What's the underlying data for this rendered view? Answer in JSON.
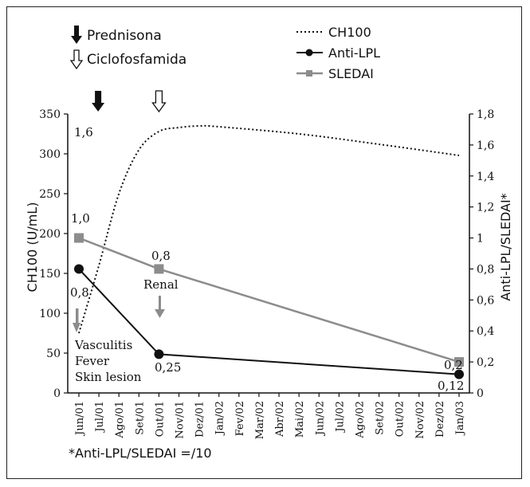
{
  "legend": {
    "prednisona": "Prednisona",
    "ciclofosfamida": "Ciclofosfamida",
    "ch100": "CH100",
    "anti_lpl": "Anti-LPL",
    "sledai": "SLEDAI"
  },
  "footnote": "*Anti-LPL/SLEDAI =/10",
  "annotations": {
    "renal": "Renal",
    "symptoms": [
      "Vasculitis",
      "Fever",
      "Skin lesion"
    ],
    "label_1_6": "1,6",
    "label_1_0": "1,0",
    "label_0_8_sledai": "0,8",
    "label_0_8_lpl": "0,8",
    "label_0_25": "0,25",
    "label_0_2": "0,2",
    "label_0_12": "0,12"
  },
  "colors": {
    "ch100": "#111111",
    "anti_lpl": "#111111",
    "sledai": "#8c8c8c",
    "arrow_gray": "#8c8c8c"
  },
  "chart_data": {
    "type": "line",
    "x": [
      "Jun/01",
      "Jul/01",
      "Ago/01",
      "Set/01",
      "Out/01",
      "Nov/01",
      "Dez/01",
      "Jan/02",
      "Fev/02",
      "Mar/02",
      "Abr/02",
      "Mai/02",
      "Jun/02",
      "Jul/02",
      "Ago/02",
      "Set/02",
      "Out/02",
      "Nov/02",
      "Dez/02",
      "Jan/03"
    ],
    "ylabel": "CH100 (U/mL)",
    "y2label": "Anti-LPL/SLEDAI*",
    "ylim": [
      0,
      350
    ],
    "y2lim": [
      0,
      1.8
    ],
    "yticks": [
      "0",
      "50",
      "100",
      "150",
      "200",
      "250",
      "300",
      "350"
    ],
    "y2ticks": [
      "0",
      "0,2",
      "0,4",
      "0,6",
      "0,8",
      "1",
      "1,2",
      "1,4",
      "1,6",
      "1,8"
    ],
    "series": [
      {
        "name": "CH100",
        "axis": "left",
        "style": "dotted",
        "x": [
          "Jun/01",
          "Jul/01",
          "Ago/01",
          "Set/01",
          "Out/01",
          "Nov/01",
          "Dez/01",
          "Jan/02",
          "Mai/02",
          "Set/02",
          "Jan/03"
        ],
        "values": [
          75,
          160,
          250,
          305,
          328,
          333,
          335,
          334,
          325,
          312,
          298
        ]
      },
      {
        "name": "Anti-LPL",
        "axis": "right",
        "marker": "circle",
        "x": [
          "Jun/01",
          "Out/01",
          "Jan/03"
        ],
        "values": [
          0.8,
          0.25,
          0.12
        ]
      },
      {
        "name": "SLEDAI",
        "axis": "right",
        "marker": "square",
        "x": [
          "Jun/01",
          "Out/01",
          "Jan/03"
        ],
        "values": [
          1.0,
          0.8,
          0.2
        ]
      }
    ],
    "events": [
      {
        "name": "Prednisona",
        "x": "Jul/01",
        "style": "filled-arrow"
      },
      {
        "name": "Ciclofosfamida",
        "x": "Out/01",
        "style": "open-arrow"
      }
    ],
    "grid": false,
    "legend_position": "top"
  }
}
